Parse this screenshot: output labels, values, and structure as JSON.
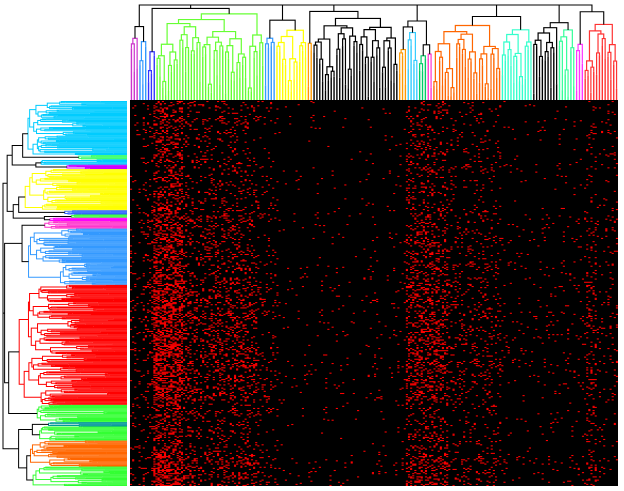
{
  "chart_data": {
    "type": "heatmap",
    "title": "",
    "xlabel": "",
    "ylabel": "",
    "colors": {
      "background": "#000000",
      "present": "#ff0000",
      "dendrogram": "#000000"
    },
    "row_clusters": [
      {
        "color": "#00ccff",
        "size": 50
      },
      {
        "color": "#33ff66",
        "size": 4
      },
      {
        "color": "#00ccff",
        "size": 5
      },
      {
        "color": "#cc00ff",
        "size": 4
      },
      {
        "color": "#ffff00",
        "size": 38
      },
      {
        "color": "#3366ff",
        "size": 4
      },
      {
        "color": "#33ff33",
        "size": 3
      },
      {
        "color": "#ff00ff",
        "size": 3
      },
      {
        "color": "#ff33cc",
        "size": 7
      },
      {
        "color": "#3399ff",
        "size": 52
      },
      {
        "color": "#ff0000",
        "size": 111
      },
      {
        "color": "#33ff33",
        "size": 16
      },
      {
        "color": "#009999",
        "size": 4
      },
      {
        "color": "#33ff33",
        "size": 13
      },
      {
        "color": "#ff6600",
        "size": 24
      },
      {
        "color": "#33ff33",
        "size": 18
      }
    ],
    "col_clusters": [
      {
        "color": "#cc33cc",
        "size": 3
      },
      {
        "color": "#3399ff",
        "size": 3
      },
      {
        "color": "#3333ff",
        "size": 3
      },
      {
        "color": "#66ff33",
        "size": 38
      },
      {
        "color": "#3399ff",
        "size": 4
      },
      {
        "color": "#ffff00",
        "size": 11
      },
      {
        "color": "#ff9900",
        "size": 2
      },
      {
        "color": "#000000",
        "size": 30
      },
      {
        "color": "#ff9900",
        "size": 3
      },
      {
        "color": "#33ccff",
        "size": 4
      },
      {
        "color": "#00cc66",
        "size": 3
      },
      {
        "color": "#ff33cc",
        "size": 2
      },
      {
        "color": "#ff6600",
        "size": 24
      },
      {
        "color": "#33ffcc",
        "size": 11
      },
      {
        "color": "#000000",
        "size": 9
      },
      {
        "color": "#33ff99",
        "size": 6
      },
      {
        "color": "#ff33ff",
        "size": 3
      },
      {
        "color": "#ff3333",
        "size": 12
      }
    ],
    "density_profile": {
      "column_bands": [
        {
          "from": 0,
          "to": 6,
          "level": 0.12
        },
        {
          "from": 6,
          "to": 11,
          "level": 0.25
        },
        {
          "from": 11,
          "to": 25,
          "level": 0.88
        },
        {
          "from": 25,
          "to": 60,
          "level": 0.35
        },
        {
          "from": 60,
          "to": 70,
          "level": 0.18
        },
        {
          "from": 70,
          "to": 130,
          "level": 0.04
        },
        {
          "from": 130,
          "to": 150,
          "level": 0.45
        },
        {
          "from": 150,
          "to": 175,
          "level": 0.18
        },
        {
          "from": 175,
          "to": 215,
          "level": 0.06
        },
        {
          "from": 215,
          "to": 220,
          "level": 0.3
        },
        {
          "from": 220,
          "to": 230,
          "level": 0.12
        }
      ],
      "row_bands": [
        {
          "from": 0,
          "to": 100,
          "level": 0.5
        },
        {
          "from": 100,
          "to": 170,
          "level": 0.75
        },
        {
          "from": 170,
          "to": 280,
          "level": 1.0
        },
        {
          "from": 280,
          "to": 330,
          "level": 0.55
        },
        {
          "from": 330,
          "to": 360,
          "level": 1.05
        }
      ]
    },
    "grid": false,
    "legend": "none"
  }
}
